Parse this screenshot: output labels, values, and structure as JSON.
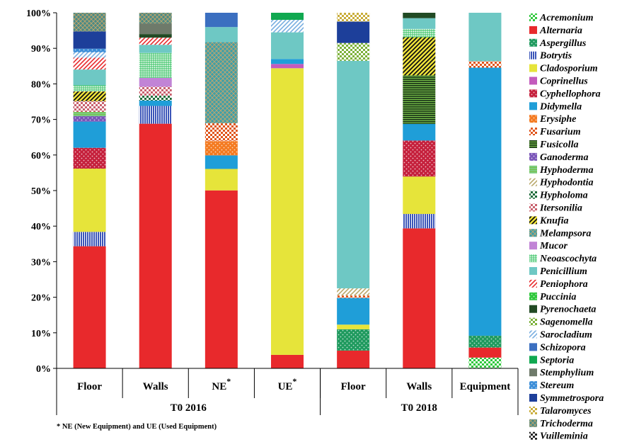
{
  "chart_data": {
    "type": "bar",
    "stacked": true,
    "y_range": [
      0,
      100
    ],
    "y_ticks": [
      "0%",
      "10%",
      "20%",
      "30%",
      "40%",
      "50%",
      "60%",
      "70%",
      "80%",
      "90%",
      "100%"
    ],
    "categories": [
      {
        "label": "Floor",
        "star": ""
      },
      {
        "label": "Walls",
        "star": ""
      },
      {
        "label": "NE",
        "star": "*"
      },
      {
        "label": "UE",
        "star": "*"
      },
      {
        "label": "Floor",
        "star": ""
      },
      {
        "label": "Walls",
        "star": ""
      },
      {
        "label": "Equipment",
        "star": ""
      }
    ],
    "groups": [
      {
        "label": "T0 2016"
      },
      {
        "label": "T0 2018"
      }
    ],
    "footnote": "* NE (New Equipment) and UE (Used Equipment)",
    "legend_position": "right",
    "series": [
      {
        "name": "Acremonium",
        "color": "#2fc83c",
        "pattern": "check",
        "values": [
          0,
          0,
          0,
          0,
          0,
          0,
          3
        ]
      },
      {
        "name": "Alternaria",
        "color": "#e8292c",
        "pattern": "solid",
        "values": [
          34,
          68.8,
          49.8,
          3.8,
          5,
          38.9,
          2.8
        ]
      },
      {
        "name": "Aspergillus",
        "color": "#1f9a5e",
        "pattern": "dots",
        "values": [
          0,
          0,
          0,
          0,
          6,
          0,
          3.3
        ]
      },
      {
        "name": "Botrytis",
        "color": "#3b55b8",
        "pattern": "vlines",
        "values": [
          4,
          5,
          0,
          0,
          0,
          4,
          0
        ]
      },
      {
        "name": "Cladosporium",
        "color": "#e6e43a",
        "pattern": "solid",
        "values": [
          17.6,
          0,
          6,
          80.6,
          1.3,
          10.4,
          0
        ]
      },
      {
        "name": "Coprinellus",
        "color": "#c35bbd",
        "pattern": "solid",
        "values": [
          0,
          0,
          0,
          1.2,
          0,
          0,
          0
        ]
      },
      {
        "name": "Cyphellophora",
        "color": "#c5203c",
        "pattern": "dots",
        "values": [
          5.8,
          0,
          0,
          0,
          0,
          10,
          0
        ]
      },
      {
        "name": "Didymella",
        "color": "#1f9ed8",
        "pattern": "solid",
        "values": [
          7.3,
          1.5,
          3.8,
          1.4,
          7.5,
          4.6,
          74.7
        ]
      },
      {
        "name": "Erysiphe",
        "color": "#f47a20",
        "pattern": "dots",
        "values": [
          0,
          0,
          4,
          0,
          0,
          0,
          0
        ]
      },
      {
        "name": "Fusarium",
        "color": "#e0561d",
        "pattern": "check",
        "values": [
          0,
          0,
          5,
          0,
          0.7,
          0,
          1.8
        ]
      },
      {
        "name": "Fusicolla",
        "color": "#1f3d1a",
        "pattern": "hlines",
        "values": [
          0,
          0,
          0,
          0,
          0,
          13.5,
          0
        ]
      },
      {
        "name": "Ganoderma",
        "color": "#7a55b8",
        "pattern": "dots",
        "values": [
          1.5,
          0,
          0,
          0,
          0,
          0,
          0
        ]
      },
      {
        "name": "Hyphoderma",
        "color": "#7ccd86",
        "pattern": "hlines",
        "values": [
          1.2,
          0,
          0,
          0,
          0,
          0,
          0
        ]
      },
      {
        "name": "Hyphodontia",
        "color": "#b9a86a",
        "pattern": "diag",
        "values": [
          0,
          0,
          0,
          0,
          2,
          0,
          0
        ]
      },
      {
        "name": "Hypholoma",
        "color": "#1d6b3a",
        "pattern": "check",
        "values": [
          0,
          1.4,
          0,
          0,
          0,
          0,
          0
        ]
      },
      {
        "name": "Itersonilia",
        "color": "#c8616e",
        "pattern": "check",
        "values": [
          3,
          2.5,
          0,
          0,
          0,
          0,
          0
        ]
      },
      {
        "name": "Knufia",
        "color": "#111111",
        "pattern": "knufia",
        "values": [
          2.7,
          0,
          0,
          0,
          0,
          10.6,
          0
        ]
      },
      {
        "name": "Melampsora",
        "color": "#3f9fa8",
        "pattern": "weave",
        "values": [
          0,
          0,
          22.7,
          0,
          0,
          0,
          0
        ]
      },
      {
        "name": "Mucor",
        "color": "#c184d6",
        "pattern": "solid",
        "values": [
          0,
          2.5,
          0,
          0,
          0,
          0,
          0
        ]
      },
      {
        "name": "Neoascochyta",
        "color": "#2ec05c",
        "pattern": "grid",
        "values": [
          1.7,
          7,
          0,
          0,
          0,
          2.3,
          0
        ]
      },
      {
        "name": "Penicillium",
        "color": "#6ec8c4",
        "pattern": "solid",
        "values": [
          4.4,
          2.3,
          4.2,
          7.5,
          64,
          3,
          13.5
        ]
      },
      {
        "name": "Peniophora",
        "color": "#e8292c",
        "pattern": "diag",
        "values": [
          3.3,
          2,
          0,
          0,
          0,
          0,
          0
        ]
      },
      {
        "name": "Puccinia",
        "color": "#2fc83c",
        "pattern": "dots",
        "values": [
          0,
          0,
          0,
          0,
          0,
          0,
          0
        ]
      },
      {
        "name": "Pyrenochaeta",
        "color": "#214a24",
        "pattern": "solid",
        "values": [
          0,
          1,
          0,
          0,
          0,
          1.5,
          0
        ]
      },
      {
        "name": "Sagenomella",
        "color": "#7cb13a",
        "pattern": "check",
        "values": [
          0,
          0,
          0,
          0,
          5,
          0,
          0
        ]
      },
      {
        "name": "Sarocladium",
        "color": "#78aee0",
        "pattern": "diag",
        "values": [
          1.5,
          0,
          0,
          3.5,
          0,
          0,
          0
        ]
      },
      {
        "name": "Schizopora",
        "color": "#3b6fc0",
        "pattern": "solid",
        "values": [
          0,
          0,
          4,
          0,
          0,
          0,
          0
        ]
      },
      {
        "name": "Septoria",
        "color": "#10a850",
        "pattern": "solid",
        "values": [
          0,
          0,
          0,
          2,
          0,
          0,
          0
        ]
      },
      {
        "name": "Stemphylium",
        "color": "#6e7a6a",
        "pattern": "solid",
        "values": [
          0,
          3,
          0,
          0,
          0,
          0,
          0
        ]
      },
      {
        "name": "Stereum",
        "color": "#3a8dd8",
        "pattern": "dots",
        "values": [
          1,
          0,
          0,
          0,
          0,
          0,
          0
        ]
      },
      {
        "name": "Symmetrospora",
        "color": "#1d3f9a",
        "pattern": "solid",
        "values": [
          4.8,
          0,
          0,
          0,
          6,
          0,
          0
        ]
      },
      {
        "name": "Talaromyces",
        "color": "#c9ad3a",
        "pattern": "check",
        "values": [
          0,
          0,
          0,
          0,
          2.5,
          0,
          0
        ]
      },
      {
        "name": "Trichoderma",
        "color": "#4a8a86",
        "pattern": "weave",
        "values": [
          5.2,
          3,
          0,
          0,
          0,
          0,
          0
        ]
      },
      {
        "name": "Vuilleminia",
        "color": "#222222",
        "pattern": "check",
        "values": [
          0,
          0,
          0,
          0,
          0,
          0,
          0
        ]
      }
    ]
  }
}
